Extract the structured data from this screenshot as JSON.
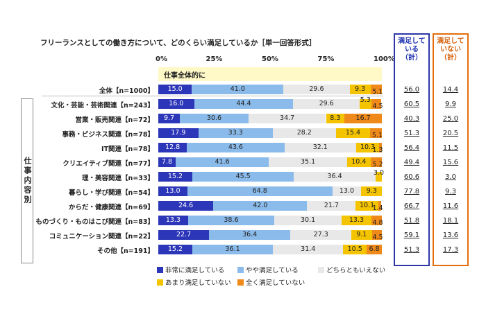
{
  "title": "フリーランスとしての働き方について、どのくらい満足しているか［単一回答形式］",
  "subheader": "仕事全体的に",
  "group_label": "仕事内容別",
  "summary": {
    "satisfied_header": [
      "満足して",
      "いる",
      "（計）"
    ],
    "unsatisfied_header": [
      "満足して",
      "いない",
      "（計）"
    ]
  },
  "colors": {
    "very_satisfied": "#2c36b8",
    "somewhat_satisfied": "#8bbbea",
    "neither": "#e8e8e8",
    "not_very": "#f5c400",
    "not_at_all": "#ef8a1a",
    "satisfied_box": "#2c36a8",
    "unsatisfied_box": "#e46c0a",
    "subheader_bg": "#fff9c8"
  },
  "chart_data": {
    "type": "bar",
    "orientation": "horizontal-stacked-100",
    "x_ticks": [
      "0%",
      "25%",
      "50%",
      "75%",
      "100%"
    ],
    "xlim": [
      0,
      100
    ],
    "legend_position": "bottom",
    "series": [
      {
        "name": "非常に満足している",
        "values": [
          15.0,
          16.0,
          9.7,
          17.9,
          12.8,
          7.8,
          15.2,
          13.0,
          24.6,
          13.3,
          22.7,
          15.2
        ]
      },
      {
        "name": "やや満足している",
        "values": [
          41.0,
          44.4,
          30.6,
          33.3,
          43.6,
          41.6,
          45.5,
          64.8,
          42.0,
          38.6,
          36.4,
          36.1
        ]
      },
      {
        "name": "どちらともいえない",
        "values": [
          29.6,
          29.6,
          34.7,
          28.2,
          32.1,
          35.1,
          36.4,
          13.0,
          21.7,
          30.1,
          27.3,
          31.4
        ]
      },
      {
        "name": "あまり満足していない",
        "values": [
          9.3,
          5.3,
          8.3,
          15.4,
          10.3,
          10.4,
          3.0,
          9.3,
          10.1,
          13.3,
          9.1,
          10.5
        ]
      },
      {
        "name": "全く満足していない",
        "values": [
          5.1,
          4.5,
          16.7,
          5.1,
          1.3,
          5.2,
          null,
          null,
          1.4,
          4.8,
          4.5,
          6.8
        ]
      }
    ],
    "categories": [
      "全体【n=1000】",
      "文化・芸能・芸術関連【n=243】",
      "営業・販売関連【n=72】",
      "事務・ビジネス関連【n=78】",
      "IT関連【n=78】",
      "クリエイティブ関連【n=77】",
      "理・美容関連【n=33】",
      "暮らし・学び関連【n=54】",
      "からだ・健康関連【n=69】",
      "ものづくり・ものはこび関連【n=83】",
      "コミュニケーション関連【n=22】",
      "その他【n=191】"
    ],
    "satisfied_total": [
      "56.0",
      "60.5",
      "40.3",
      "51.3",
      "56.4",
      "49.4",
      "60.6",
      "77.8",
      "66.7",
      "51.8",
      "59.1",
      "51.3"
    ],
    "unsatisfied_total": [
      "14.4",
      "9.9",
      "25.0",
      "20.5",
      "11.5",
      "15.6",
      "3.0",
      "9.3",
      "11.6",
      "18.1",
      "13.6",
      "17.3"
    ]
  }
}
